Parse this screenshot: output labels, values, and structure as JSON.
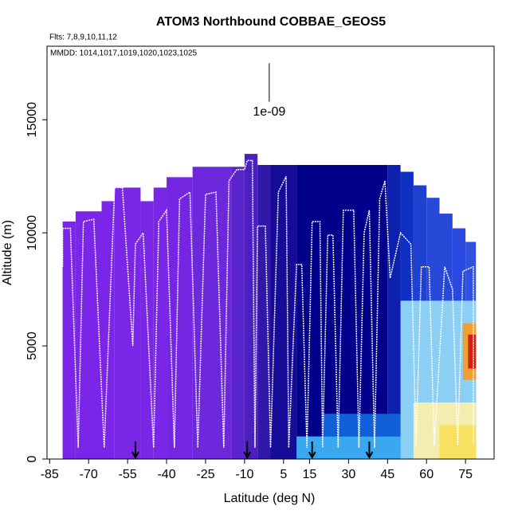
{
  "chart_data": {
    "type": "curtain",
    "title": "ATOM3 Northbound COBBAE_GEOS5",
    "subtitle": "Flts: 7,8,9,10,11,12",
    "subtitle2": "MMDD: 1014,1017,1019,1020,1023,1025",
    "annotation": "1e-09",
    "annotation_x": -0.5,
    "annotation_ylim": [
      15800,
      17500
    ],
    "xlabel": "Latitude (deg N)",
    "ylabel": "Altitude (m)",
    "xlim": [
      -86,
      86
    ],
    "ylim": [
      0,
      18250
    ],
    "xticks": [
      -85,
      -70,
      -55,
      -40,
      -25,
      -10,
      5,
      15,
      30,
      45,
      60,
      75
    ],
    "yticks": [
      0,
      5000,
      10000,
      15000
    ],
    "patches": [
      {
        "x0": -80,
        "x1": -75,
        "y0": 0,
        "y1": 10500,
        "color": "#7b25e8"
      },
      {
        "x0": -75,
        "x1": -65,
        "y0": 0,
        "y1": 10950,
        "color": "#7b25e8"
      },
      {
        "x0": -65,
        "x1": -60,
        "y0": 0,
        "y1": 11400,
        "color": "#7b25e8"
      },
      {
        "x0": -60,
        "x1": -50,
        "y0": 0,
        "y1": 12000,
        "color": "#7a26e6"
      },
      {
        "x0": -50,
        "x1": -45,
        "y0": 0,
        "y1": 11400,
        "color": "#7a26e6"
      },
      {
        "x0": -45,
        "x1": -40,
        "y0": 0,
        "y1": 12000,
        "color": "#7a26e6"
      },
      {
        "x0": -40,
        "x1": -30,
        "y0": 0,
        "y1": 12460,
        "color": "#7526e2"
      },
      {
        "x0": -30,
        "x1": -15,
        "y0": 0,
        "y1": 12920,
        "color": "#6e28dc"
      },
      {
        "x0": -15,
        "x1": -10,
        "y0": 0,
        "y1": 12920,
        "color": "#5a24cc"
      },
      {
        "x0": -10,
        "x1": -5,
        "y0": 0,
        "y1": 13490,
        "color": "#4a20c0"
      },
      {
        "x0": -5,
        "x1": 0,
        "y0": 0,
        "y1": 13000,
        "color": "#3018a8"
      },
      {
        "x0": 0,
        "x1": 10,
        "y0": 0,
        "y1": 13000,
        "color": "#160c98"
      },
      {
        "x0": 10,
        "x1": 45,
        "y0": 0,
        "y1": 13000,
        "color": "#00008b"
      },
      {
        "x0": 45,
        "x1": 50,
        "y0": 0,
        "y1": 13000,
        "color": "#0c20b0"
      },
      {
        "x0": 50,
        "x1": 55,
        "y0": 0,
        "y1": 12700,
        "color": "#1030c4"
      },
      {
        "x0": 55,
        "x1": 60,
        "y0": 0,
        "y1": 12100,
        "color": "#2040d0"
      },
      {
        "x0": 60,
        "x1": 65,
        "y0": 0,
        "y1": 11550,
        "color": "#2848d8"
      },
      {
        "x0": 65,
        "x1": 70,
        "y0": 0,
        "y1": 10850,
        "color": "#2848d8"
      },
      {
        "x0": 70,
        "x1": 75,
        "y0": 0,
        "y1": 10200,
        "color": "#2848e0"
      },
      {
        "x0": 75,
        "x1": 79,
        "y0": 0,
        "y1": 9600,
        "color": "#3050e0"
      },
      {
        "x0": 10,
        "x1": 50,
        "y0": 0,
        "y1": 1000,
        "color": "#3aa8f0"
      },
      {
        "x0": 20,
        "x1": 50,
        "y0": 1000,
        "y1": 2000,
        "color": "#1060d8"
      },
      {
        "x0": 50,
        "x1": 79,
        "y0": 0,
        "y1": 7000,
        "color": "#8ccff5"
      },
      {
        "x0": 55,
        "x1": 79,
        "y0": 0,
        "y1": 2500,
        "color": "#f5ecb0"
      },
      {
        "x0": 65,
        "x1": 79,
        "y0": 0,
        "y1": 1500,
        "color": "#f8e060"
      },
      {
        "x0": 74,
        "x1": 79,
        "y0": 3500,
        "y1": 6000,
        "color": "#f0a030"
      },
      {
        "x0": 76,
        "x1": 79,
        "y0": 4000,
        "y1": 5500,
        "color": "#d02010"
      }
    ],
    "track": {
      "color": "#ffffff",
      "x": [
        -80,
        -80,
        -77,
        -74,
        -72,
        -68,
        -64,
        -60,
        -57,
        -53,
        -52,
        -49,
        -45,
        -43,
        -40,
        -37,
        -35,
        -31,
        -28,
        -25,
        -21,
        -18,
        -16,
        -13,
        -10,
        -9,
        -7,
        -6,
        -5,
        -2,
        0,
        3,
        6,
        7,
        10,
        12,
        14,
        16,
        19,
        20,
        22,
        24,
        26,
        28,
        32,
        34,
        36,
        38,
        40,
        42,
        44,
        46,
        50,
        54,
        56,
        58,
        61,
        63,
        67,
        70,
        72,
        74,
        78,
        78
      ],
      "y": [
        8500,
        10200,
        10200,
        500,
        10500,
        10600,
        500,
        12000,
        12000,
        5000,
        9500,
        10000,
        500,
        10500,
        11000,
        500,
        11500,
        11800,
        500,
        11700,
        11800,
        500,
        12300,
        12800,
        12800,
        13200,
        13200,
        500,
        10300,
        10300,
        500,
        11800,
        12500,
        500,
        8600,
        8600,
        500,
        10500,
        10500,
        500,
        9900,
        9900,
        500,
        11000,
        11000,
        500,
        10000,
        11000,
        500,
        11500,
        12300,
        8000,
        10000,
        9500,
        600,
        8500,
        8500,
        600,
        8500,
        7500,
        600,
        8300,
        8500,
        600
      ]
    },
    "arrows": [
      -52,
      -9,
      16,
      38
    ]
  }
}
